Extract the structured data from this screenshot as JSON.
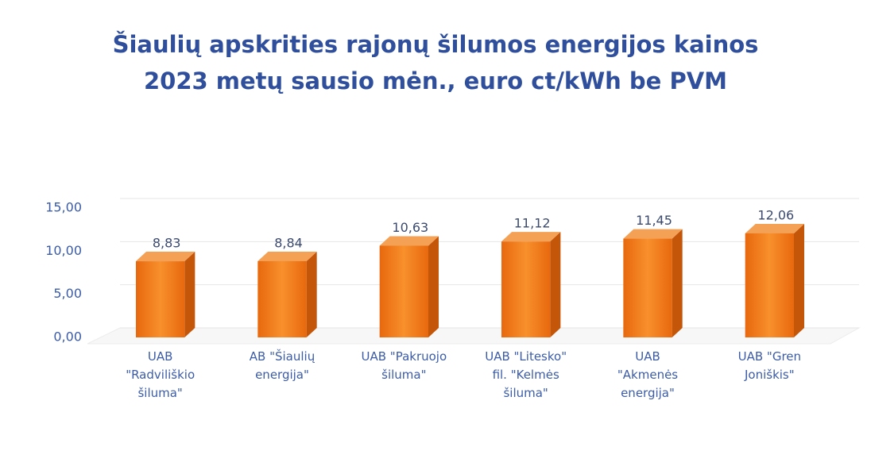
{
  "chart_data": {
    "type": "bar3d",
    "title": "Šiaulių apskrities rajonų šilumos energijos kainos",
    "subtitle": "2023 metų sausio mėn., euro ct/kWh be PVM",
    "categories": [
      [
        "UAB",
        "\"Radviliškio",
        "šiluma\""
      ],
      [
        "AB \"Šiaulių",
        "energija\""
      ],
      [
        "UAB \"Pakruojo",
        "šiluma\""
      ],
      [
        "UAB \"Litesko\"",
        "fil. \"Kelmės",
        "šiluma\""
      ],
      [
        "UAB",
        "\"Akmenės",
        "energija\""
      ],
      [
        "UAB \"Gren",
        "Joniškis\""
      ]
    ],
    "values": [
      8.83,
      8.84,
      10.63,
      11.12,
      11.45,
      12.06
    ],
    "value_labels": [
      "8,83",
      "8,84",
      "10,63",
      "11,12",
      "11,45",
      "12,06"
    ],
    "color": "#f07a18",
    "ylim": [
      0,
      15
    ],
    "yticks": [
      {
        "value": 0,
        "label": "0,00"
      },
      {
        "value": 5,
        "label": "5,00"
      },
      {
        "value": 10,
        "label": "10,00"
      },
      {
        "value": 15,
        "label": "15,00"
      }
    ],
    "grid": true
  }
}
